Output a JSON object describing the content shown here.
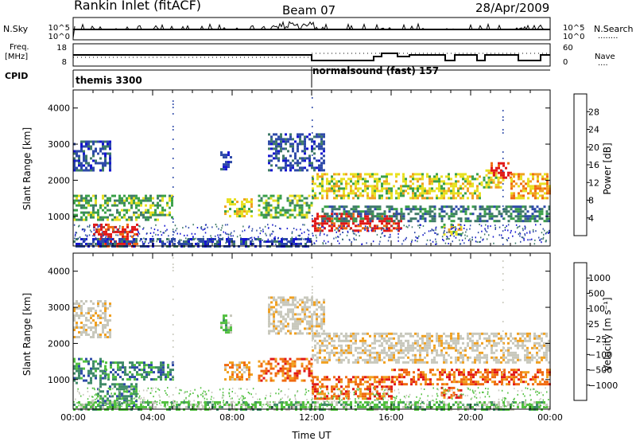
{
  "header": {
    "title": "Rankin Inlet (fitACF)",
    "beam": "Beam 07",
    "date": "28/Apr/2009"
  },
  "strip_labels": {
    "nsky": "N.Sky",
    "nsearch": "N.Search",
    "nsearch_dots": "........",
    "freq": "Freq.",
    "freq_unit": "[MHz]",
    "nave": "Nave",
    "nave_dots": "....",
    "cpid": "CPID",
    "nsky_top_tick": "10^5",
    "nsky_bot_tick": "10^0",
    "nsearch_top_tick": "10^5",
    "nsearch_bot_tick": "10^0",
    "freq_top_tick": "18",
    "freq_bot_tick": "8",
    "nave_top_tick": "60",
    "nave_bot_tick": "0"
  },
  "cpid_labels": [
    {
      "text": "themis 3300",
      "start_hour": 0
    },
    {
      "text": "normalsound (fast) 157",
      "start_hour": 12
    }
  ],
  "colors": {
    "power": [
      "#1515d0",
      "#2e4aa8",
      "#3f7a68",
      "#3aa048",
      "#e8e020",
      "#f0a020",
      "#f06a10",
      "#e01818"
    ],
    "velocity": [
      "#e01818",
      "#f06a10",
      "#f0a020",
      "#c8c8bc",
      "#c8c8bc",
      "#52c040",
      "#3f8a68",
      "#2e4aa8",
      "#1a1ac0"
    ],
    "grey": "#c8c8bc"
  },
  "chart_data": [
    {
      "type": "heatmap",
      "name": "power",
      "xlabel": "",
      "ylabel": "Slant Range [km]",
      "xlim": [
        0,
        24
      ],
      "ylim": [
        180,
        4500
      ],
      "yticks": [
        "1000",
        "2000",
        "3000",
        "4000"
      ],
      "xticks": [
        "00:00",
        "04:00",
        "08:00",
        "12:00",
        "16:00",
        "20:00",
        "00:00"
      ],
      "colorbar": {
        "label": "Power [dB]",
        "ticks": [
          "4",
          "8",
          "12",
          "16",
          "20",
          "24",
          "28"
        ]
      },
      "echo_bands": [
        {
          "t0": 0.0,
          "t1": 1.9,
          "r0": 2300,
          "r1": 3100,
          "level": 1
        },
        {
          "t0": 0.0,
          "t1": 5.0,
          "r0": 900,
          "r1": 1600,
          "level": 3
        },
        {
          "t0": 1.0,
          "t1": 3.2,
          "r0": 180,
          "r1": 800,
          "level": 7
        },
        {
          "t0": 7.4,
          "t1": 8.0,
          "r0": 2300,
          "r1": 2800,
          "level": 1
        },
        {
          "t0": 7.6,
          "t1": 9.0,
          "r0": 1000,
          "r1": 1500,
          "level": 4
        },
        {
          "t0": 9.3,
          "t1": 12.0,
          "r0": 1000,
          "r1": 1600,
          "level": 3
        },
        {
          "t0": 9.8,
          "t1": 12.6,
          "r0": 2300,
          "r1": 3300,
          "level": 1
        },
        {
          "t0": 12.0,
          "t1": 16.5,
          "r0": 600,
          "r1": 1100,
          "level": 7
        },
        {
          "t0": 12.0,
          "t1": 20.5,
          "r0": 1500,
          "r1": 2200,
          "level": 4
        },
        {
          "t0": 12.5,
          "t1": 24.0,
          "r0": 900,
          "r1": 1300,
          "level": 2
        },
        {
          "t0": 20.5,
          "t1": 21.6,
          "r0": 1800,
          "r1": 2300,
          "level": 4
        },
        {
          "t0": 21.0,
          "t1": 22.0,
          "r0": 2100,
          "r1": 2500,
          "level": 7
        },
        {
          "t0": 22.0,
          "t1": 24.0,
          "r0": 1500,
          "r1": 2200,
          "level": 5
        },
        {
          "t0": 18.5,
          "t1": 19.5,
          "r0": 500,
          "r1": 800,
          "level": 4
        },
        {
          "t0": 0.0,
          "t1": 12.0,
          "r0": 180,
          "r1": 400,
          "level": 1
        }
      ]
    },
    {
      "type": "heatmap",
      "name": "velocity",
      "xlabel": "Time UT",
      "ylabel": "Slant Range [km]",
      "xlim": [
        0,
        24
      ],
      "ylim": [
        180,
        4500
      ],
      "yticks": [
        "1000",
        "2000",
        "3000",
        "4000"
      ],
      "xticks": [
        "00:00",
        "04:00",
        "08:00",
        "12:00",
        "16:00",
        "20:00",
        "00:00"
      ],
      "colorbar": {
        "label": "Velocity [m s⁻¹]",
        "ticks": [
          "1000",
          "500",
          "100",
          "25",
          "−25",
          "−100",
          "−500",
          "−1000"
        ]
      },
      "echo_bands": [
        {
          "t0": 0.0,
          "t1": 1.9,
          "r0": 2200,
          "r1": 3200,
          "level": 3
        },
        {
          "t0": 0.0,
          "t1": 1.6,
          "r0": 900,
          "r1": 1600,
          "level": 6
        },
        {
          "t0": 1.6,
          "t1": 5.0,
          "r0": 1000,
          "r1": 1500,
          "level": 6
        },
        {
          "t0": 1.2,
          "t1": 3.2,
          "r0": 300,
          "r1": 900,
          "level": 6
        },
        {
          "t0": 7.4,
          "t1": 8.0,
          "r0": 2300,
          "r1": 2800,
          "level": 5
        },
        {
          "t0": 7.6,
          "t1": 9.0,
          "r0": 1000,
          "r1": 1500,
          "level": 2
        },
        {
          "t0": 9.3,
          "t1": 12.0,
          "r0": 1000,
          "r1": 1600,
          "level": 1
        },
        {
          "t0": 9.8,
          "t1": 12.6,
          "r0": 2300,
          "r1": 3300,
          "level": 3
        },
        {
          "t0": 12.0,
          "t1": 24.0,
          "r0": 1500,
          "r1": 2300,
          "level": 3
        },
        {
          "t0": 12.0,
          "t1": 16.0,
          "r0": 500,
          "r1": 1100,
          "level": 1
        },
        {
          "t0": 16.0,
          "t1": 24.0,
          "r0": 900,
          "r1": 1300,
          "level": 1
        },
        {
          "t0": 18.5,
          "t1": 19.5,
          "r0": 500,
          "r1": 800,
          "level": 1
        },
        {
          "t0": 0.0,
          "t1": 24.0,
          "r0": 180,
          "r1": 400,
          "level": 5
        }
      ]
    }
  ]
}
